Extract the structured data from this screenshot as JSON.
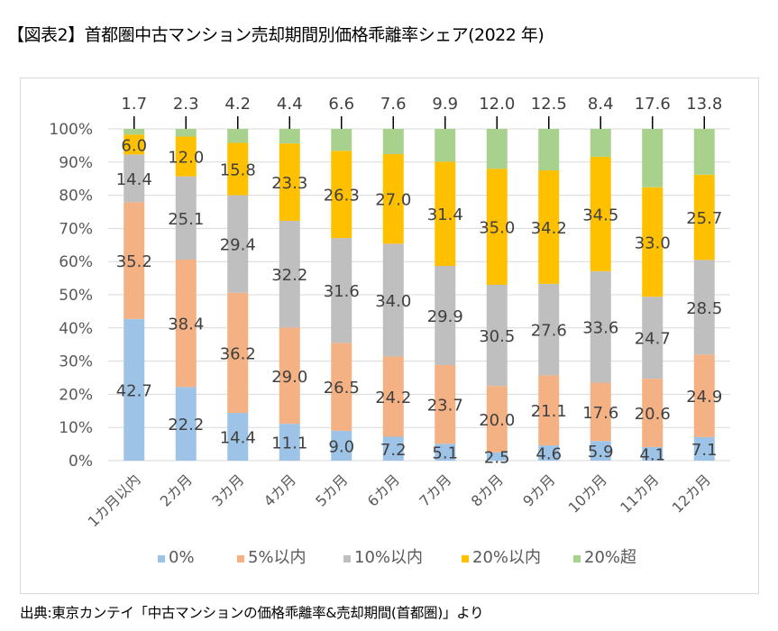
{
  "title": "【図表2】首都圏中古マンション売却期間別価格乖離率シェア(2022 年)",
  "source": "出典:東京カンテイ「中古マンションの価格乖離率&売却期間(首都圏)」より",
  "chart_data": {
    "type": "bar",
    "stacked": true,
    "percent_stacked": true,
    "title": "【図表2】首都圏中古マンション売却期間別価格乖離率シェア(2022 年)",
    "xlabel": "",
    "ylabel": "",
    "ylim": [
      0,
      100
    ],
    "y_ticks": [
      "0%",
      "10%",
      "20%",
      "30%",
      "40%",
      "50%",
      "60%",
      "70%",
      "80%",
      "90%",
      "100%"
    ],
    "grid": true,
    "legend_position": "bottom",
    "categories": [
      "1カ月以内",
      "2カ月",
      "3カ月",
      "4カ月",
      "5カ月",
      "6カ月",
      "7カ月",
      "8カ月",
      "9カ月",
      "10カ月",
      "11カ月",
      "12カ月"
    ],
    "series": [
      {
        "name": "0%",
        "color": "#9dc3e6",
        "values": [
          42.7,
          22.2,
          14.4,
          11.1,
          9.0,
          7.2,
          5.1,
          2.5,
          4.6,
          5.9,
          4.1,
          7.1
        ]
      },
      {
        "name": "5%以内",
        "color": "#f4b183",
        "values": [
          35.2,
          38.4,
          36.2,
          29.0,
          26.5,
          24.2,
          23.7,
          20.0,
          21.1,
          17.6,
          20.6,
          24.9
        ]
      },
      {
        "name": "10%以内",
        "color": "#bfbfbf",
        "values": [
          14.4,
          25.1,
          29.4,
          32.2,
          31.6,
          34.0,
          29.9,
          30.5,
          27.6,
          33.6,
          24.7,
          28.5
        ]
      },
      {
        "name": "20%以内",
        "color": "#ffc000",
        "values": [
          6.0,
          12.0,
          15.8,
          23.3,
          26.3,
          27.0,
          31.4,
          35.0,
          34.2,
          34.5,
          33.0,
          25.7
        ]
      },
      {
        "name": "20%超",
        "color": "#a9d18e",
        "values": [
          1.7,
          2.3,
          4.2,
          4.4,
          6.6,
          7.6,
          9.9,
          12.0,
          12.5,
          8.4,
          17.6,
          13.8
        ]
      }
    ],
    "data_labels": true,
    "top_series_label_position": "above-with-leader-line"
  }
}
